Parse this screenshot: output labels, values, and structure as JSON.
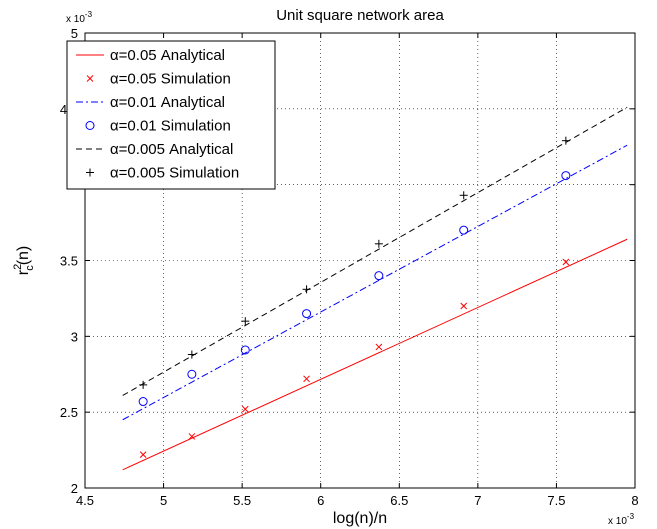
{
  "chart_data": {
    "type": "line",
    "title": "Unit square network area",
    "xlabel": "log(n)/n",
    "ylabel": {
      "base": "r",
      "sup": "2",
      "sub": "c",
      "rest": "(n)"
    },
    "x_exponent_label": {
      "prefix": "x 10",
      "power": "-3"
    },
    "y_exponent_label": {
      "prefix": "x 10",
      "power": "-3"
    },
    "xlim": [
      4.5,
      8.0
    ],
    "ylim": [
      2.0,
      5.0
    ],
    "x_ticks": [
      4.5,
      5,
      5.5,
      6,
      6.5,
      7,
      7.5,
      8
    ],
    "x_tick_labels": [
      "4.5",
      "5",
      "5.5",
      "6",
      "6.5",
      "7",
      "7.5",
      "8"
    ],
    "y_ticks": [
      2,
      2.5,
      3,
      3.5,
      4,
      4.5,
      5
    ],
    "y_tick_labels": [
      "2",
      "2.5",
      "3",
      "3.5",
      "4",
      "4.5",
      "5"
    ],
    "grid": true,
    "legend_position": "top-left",
    "series": [
      {
        "name": "α=0.05 Analytical",
        "kind": "line",
        "style": "solid",
        "color": "#ff0000",
        "x": [
          4.74,
          7.95
        ],
        "y": [
          2.12,
          3.64
        ]
      },
      {
        "name": "α=0.05 Simulation",
        "kind": "marker",
        "marker": "x",
        "color": "#ff0000",
        "x": [
          4.87,
          5.18,
          5.52,
          5.91,
          6.37,
          6.91,
          7.56
        ],
        "y": [
          2.22,
          2.34,
          2.52,
          2.72,
          2.93,
          3.2,
          3.49
        ]
      },
      {
        "name": "α=0.01 Analytical",
        "kind": "line",
        "style": "dashdot",
        "color": "#0000ff",
        "x": [
          4.74,
          7.95
        ],
        "y": [
          2.45,
          4.26
        ]
      },
      {
        "name": "α=0.01 Simulation",
        "kind": "marker",
        "marker": "circle",
        "color": "#0000ff",
        "x": [
          4.87,
          5.18,
          5.52,
          5.91,
          6.37,
          6.91,
          7.56
        ],
        "y": [
          2.57,
          2.75,
          2.91,
          3.15,
          3.4,
          3.7,
          4.06
        ]
      },
      {
        "name": "α=0.005 Analytical",
        "kind": "line",
        "style": "dashed",
        "color": "#000000",
        "x": [
          4.74,
          7.95
        ],
        "y": [
          2.61,
          4.51
        ]
      },
      {
        "name": "α=0.005 Simulation",
        "kind": "marker",
        "marker": "plus",
        "color": "#000000",
        "x": [
          4.87,
          5.18,
          5.52,
          5.91,
          6.37,
          6.91,
          7.56
        ],
        "y": [
          2.68,
          2.88,
          3.1,
          3.31,
          3.61,
          3.93,
          4.29
        ]
      }
    ]
  }
}
